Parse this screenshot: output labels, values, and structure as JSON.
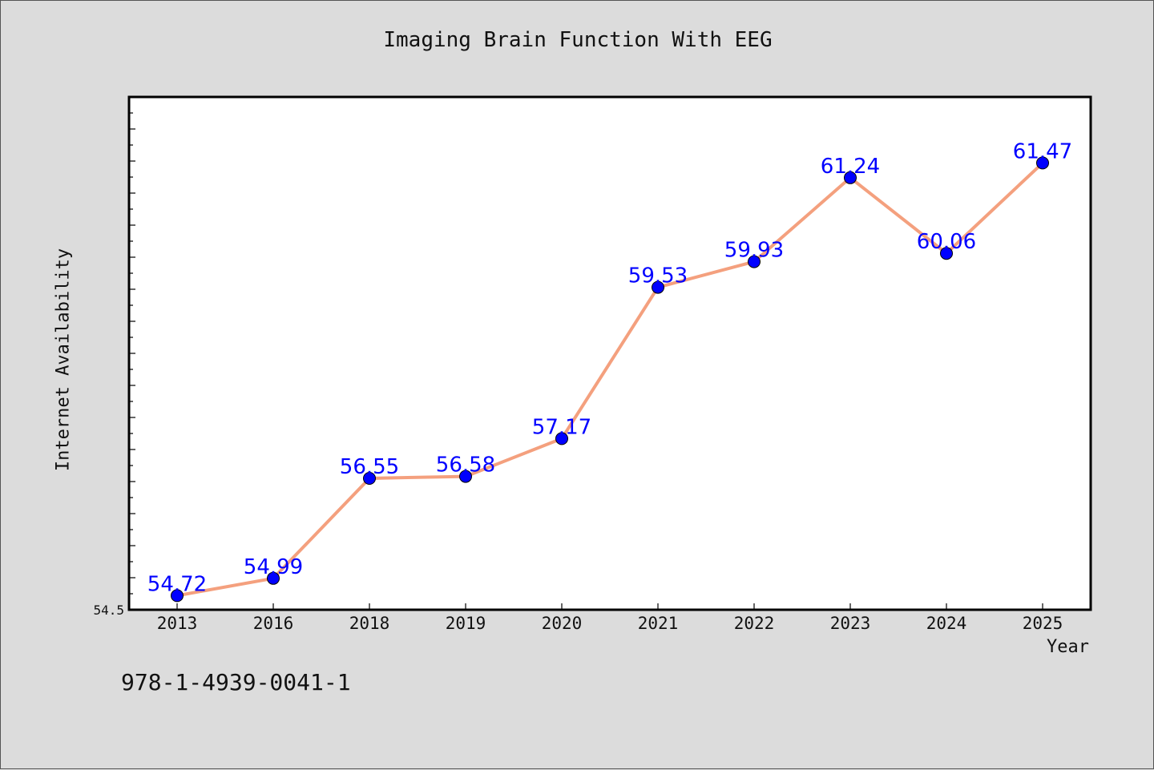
{
  "colors": {
    "background": "#dcdcdc",
    "plot_background": "#ffffff",
    "line": "#f4a07e",
    "marker": "#0000ff",
    "data_label": "#0000ff",
    "axis": "#000000",
    "text": "#111111"
  },
  "footer": {
    "isbn": "978-1-4939-0041-1"
  },
  "chart_data": {
    "type": "line",
    "title": "Imaging Brain Function With EEG",
    "xlabel": "Year",
    "ylabel": "Internet Availability",
    "categories": [
      "2013",
      "2016",
      "2018",
      "2019",
      "2020",
      "2021",
      "2022",
      "2023",
      "2024",
      "2025"
    ],
    "series": [
      {
        "values": [
          54.72,
          54.99,
          56.55,
          56.58,
          57.17,
          59.53,
          59.93,
          61.24,
          60.06,
          61.47
        ]
      }
    ],
    "y_tick_labels": [
      "54.5"
    ],
    "ylim": [
      54.5,
      62.5
    ],
    "data_labels": true,
    "grid": false,
    "legend": "none"
  }
}
